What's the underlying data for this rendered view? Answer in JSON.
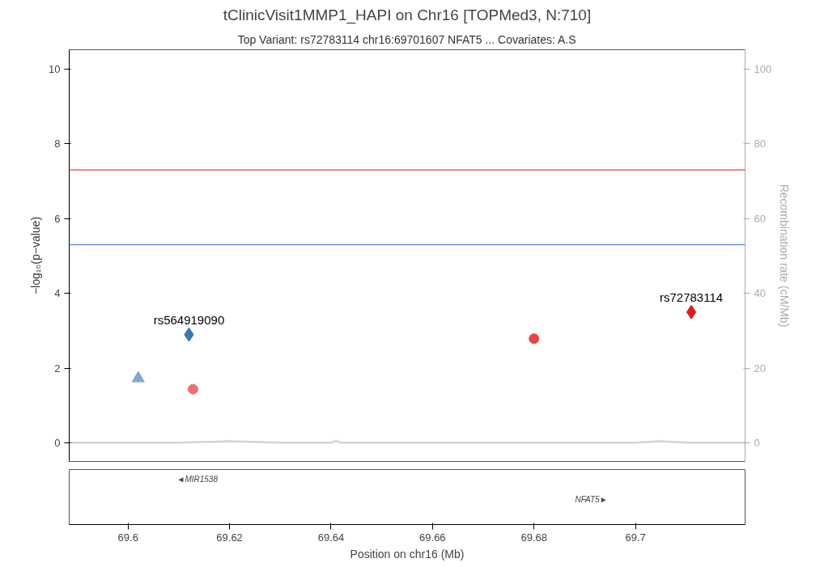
{
  "chart_data": {
    "type": "scatter",
    "title": "tClinicVisit1MMP1_HAPI on Chr16 [TOPMed3, N:710]",
    "subtitle": "Top Variant: rs72783114 chr16:69701607 NFAT5 ... Covariates: A.S",
    "xlabel": "Position on chr16 (Mb)",
    "ylabel": "−log₁₀(p−value)",
    "y2label": "Recombination rate (cM/Mb)",
    "xlim": [
      69.5884,
      69.7216
    ],
    "xticks": [
      69.6,
      69.62,
      69.64,
      69.66,
      69.68,
      69.7
    ],
    "ylim": [
      -0.49,
      10.51
    ],
    "yticks": [
      0,
      2,
      4,
      6,
      8,
      10
    ],
    "y2lim": [
      -4.9,
      105.1
    ],
    "y2ticks": [
      0,
      20,
      40,
      60,
      80,
      100
    ],
    "grid": false,
    "series": [
      {
        "marker": "triangle",
        "color": "#7fa9d3",
        "x": [
          69.602
        ],
        "values": [
          1.73
        ]
      },
      {
        "marker": "diamond",
        "color": "#3a78b5",
        "x": [
          69.612
        ],
        "values": [
          2.9
        ]
      },
      {
        "marker": "circle",
        "color": "#ee7070",
        "x": [
          69.6128
        ],
        "values": [
          1.44
        ]
      },
      {
        "marker": "circle",
        "color": "#e84444",
        "x": [
          69.68
        ],
        "values": [
          2.79
        ]
      },
      {
        "marker": "diamond",
        "color": "#e31a1c",
        "x": [
          69.711
        ],
        "values": [
          3.5
        ]
      },
      {
        "type": "line",
        "axis": "y2",
        "color": "#d3d3d3",
        "x": [
          69.5884,
          69.6,
          69.61,
          69.62,
          69.63,
          69.64,
          69.641,
          69.642,
          69.66,
          69.68,
          69.7,
          69.705,
          69.71,
          69.7216
        ],
        "values": [
          0.1,
          0.1,
          0.1,
          0.5,
          0.1,
          0.1,
          0.6,
          0.1,
          0.1,
          0.1,
          0.1,
          0.5,
          0.1,
          0.1
        ]
      }
    ],
    "ref_lines": [
      {
        "axis": "y",
        "value": 7.3,
        "color": "#ff0000"
      },
      {
        "axis": "y",
        "value": 5.3,
        "color": "#4169e1"
      }
    ],
    "annotations": [
      {
        "text": "rs564919090",
        "x": 69.612,
        "y": 2.9
      },
      {
        "text": "rs72783114",
        "x": 69.711,
        "y": 3.5
      },
      "◄MIR1538",
      "NFAT5►"
    ]
  }
}
